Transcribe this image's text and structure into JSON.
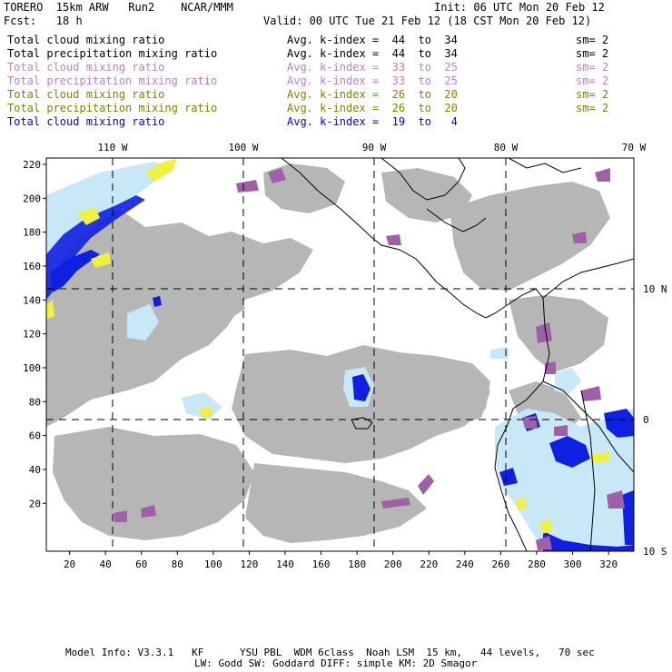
{
  "header": {
    "left_line1": "TORERO  15km ARW   Run2    NCAR/MMM",
    "init": "Init: 06 UTC Mon 20 Feb 12",
    "left_line2": "Fcst:   18 h",
    "valid": "Valid: 00 UTC Tue 21 Feb 12 (18 CST Mon 20 Feb 12)"
  },
  "legend": [
    {
      "field": "Total cloud mixing ratio",
      "k": "Avg. k-index =  44  to  34",
      "sm": "sm= 2",
      "color": "#000000"
    },
    {
      "field": "Total precipitation mixing ratio",
      "k": "Avg. k-index =  44  to  34",
      "sm": "sm= 2",
      "color": "#000000"
    },
    {
      "field": "Total cloud mixing ratio",
      "k": "Avg. k-index =  33  to  25",
      "sm": "sm= 2",
      "color": "#c080c0"
    },
    {
      "field": "Total precipitation mixing ratio",
      "k": "Avg. k-index =  33  to  25",
      "sm": "sm= 2",
      "color": "#c080c0"
    },
    {
      "field": "Total cloud mixing ratio",
      "k": "Avg. k-index =  26  to  20",
      "sm": "sm= 2",
      "color": "#808000"
    },
    {
      "field": "Total precipitation mixing ratio",
      "k": "Avg. k-index =  26  to  20",
      "sm": "sm= 2",
      "color": "#808000"
    },
    {
      "field": "Total cloud mixing ratio",
      "k": "Avg. k-index =  19  to   4",
      "sm": "",
      "color": "#0000ff"
    }
  ],
  "axes": {
    "top_labels": [
      "110 W",
      "100 W",
      "90 W",
      "80 W",
      "70 W"
    ],
    "right_labels": [
      "10 N",
      "0",
      "10 S"
    ],
    "y_ticks": [
      "220",
      "200",
      "180",
      "160",
      "140",
      "120",
      "100",
      "80",
      "60",
      "40",
      "20"
    ],
    "x_ticks": [
      "20",
      "40",
      "60",
      "80",
      "100",
      "120",
      "140",
      "160",
      "180",
      "200",
      "220",
      "240",
      "260",
      "280",
      "300",
      "320"
    ]
  },
  "footer": {
    "line1": "Model Info: V3.3.1   KF      YSU PBL  WDM 6class  Noah LSM  15 km,   44 levels,   70 sec",
    "line2": "LW: Godd SW: Goddard DIFF: simple KM: 2D Smagor"
  },
  "colors": {
    "cloud_gray": "#aaaaaa",
    "light_blue": "#c8e8f8",
    "blue": "#1020e0",
    "yellow": "#f0f040",
    "purple": "#a060a8"
  }
}
